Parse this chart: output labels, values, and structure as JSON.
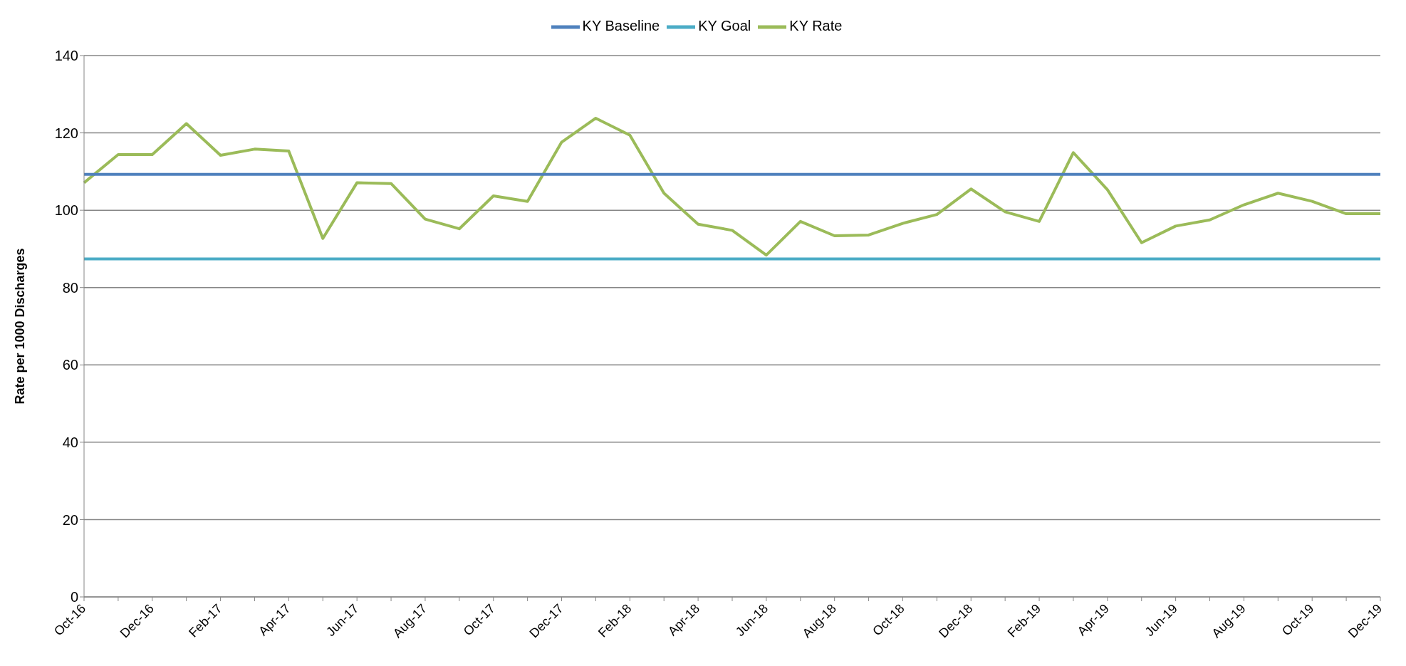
{
  "chart_data": {
    "type": "line",
    "ylabel": "Rate per 1000 Discharges",
    "categories": [
      "Oct-16",
      null,
      "Dec-16",
      null,
      "Feb-17",
      null,
      "Apr-17",
      null,
      "Jun-17",
      null,
      "Aug-17",
      null,
      "Oct-17",
      null,
      "Dec-17",
      null,
      "Feb-18",
      null,
      "Apr-18",
      null,
      "Jun-18",
      null,
      "Aug-18",
      null,
      "Oct-18",
      null,
      "Dec-18",
      null,
      "Feb-19",
      null,
      "Apr-19",
      null,
      "Jun-19",
      null,
      "Aug-19",
      null,
      "Oct-19",
      null,
      "Dec-19"
    ],
    "series": [
      {
        "name": "KY Rate",
        "color": "#9bbb59",
        "values": [
          107.1,
          114.4,
          114.4,
          122.4,
          114.2,
          115.8,
          115.3,
          92.7,
          107.1,
          106.9,
          97.7,
          95.2,
          103.7,
          102.3,
          117.6,
          123.8,
          119.4,
          104.4,
          96.4,
          94.8,
          88.4,
          97.1,
          93.4,
          93.6,
          96.6,
          98.9,
          105.5,
          99.6,
          97.1,
          114.9,
          105.3,
          91.6,
          95.9,
          97.5,
          101.4,
          104.4,
          102.3,
          99.1,
          99.1
        ]
      },
      {
        "name": "KY Baseline",
        "color": "#4f81bd",
        "values": [
          109.3,
          109.3,
          109.3,
          109.3,
          109.3,
          109.3,
          109.3,
          109.3,
          109.3,
          109.3,
          109.3,
          109.3,
          109.3,
          109.3,
          109.3,
          109.3,
          109.3,
          109.3,
          109.3,
          109.3,
          109.3,
          109.3,
          109.3,
          109.3,
          109.3,
          109.3,
          109.3,
          109.3,
          109.3,
          109.3,
          109.3,
          109.3,
          109.3,
          109.3,
          109.3,
          109.3,
          109.3,
          109.3,
          109.3
        ]
      },
      {
        "name": "KY Goal",
        "color": "#4bacc6",
        "values": [
          87.4,
          87.4,
          87.4,
          87.4,
          87.4,
          87.4,
          87.4,
          87.4,
          87.4,
          87.4,
          87.4,
          87.4,
          87.4,
          87.4,
          87.4,
          87.4,
          87.4,
          87.4,
          87.4,
          87.4,
          87.4,
          87.4,
          87.4,
          87.4,
          87.4,
          87.4,
          87.4,
          87.4,
          87.4,
          87.4,
          87.4,
          87.4,
          87.4,
          87.4,
          87.4,
          87.4,
          87.4,
          87.4,
          87.4
        ]
      }
    ],
    "ylim": [
      0,
      140
    ],
    "yticks": [
      0,
      20,
      40,
      60,
      80,
      100,
      120,
      140
    ],
    "grid": "y",
    "legend": "top",
    "marker": "none"
  }
}
